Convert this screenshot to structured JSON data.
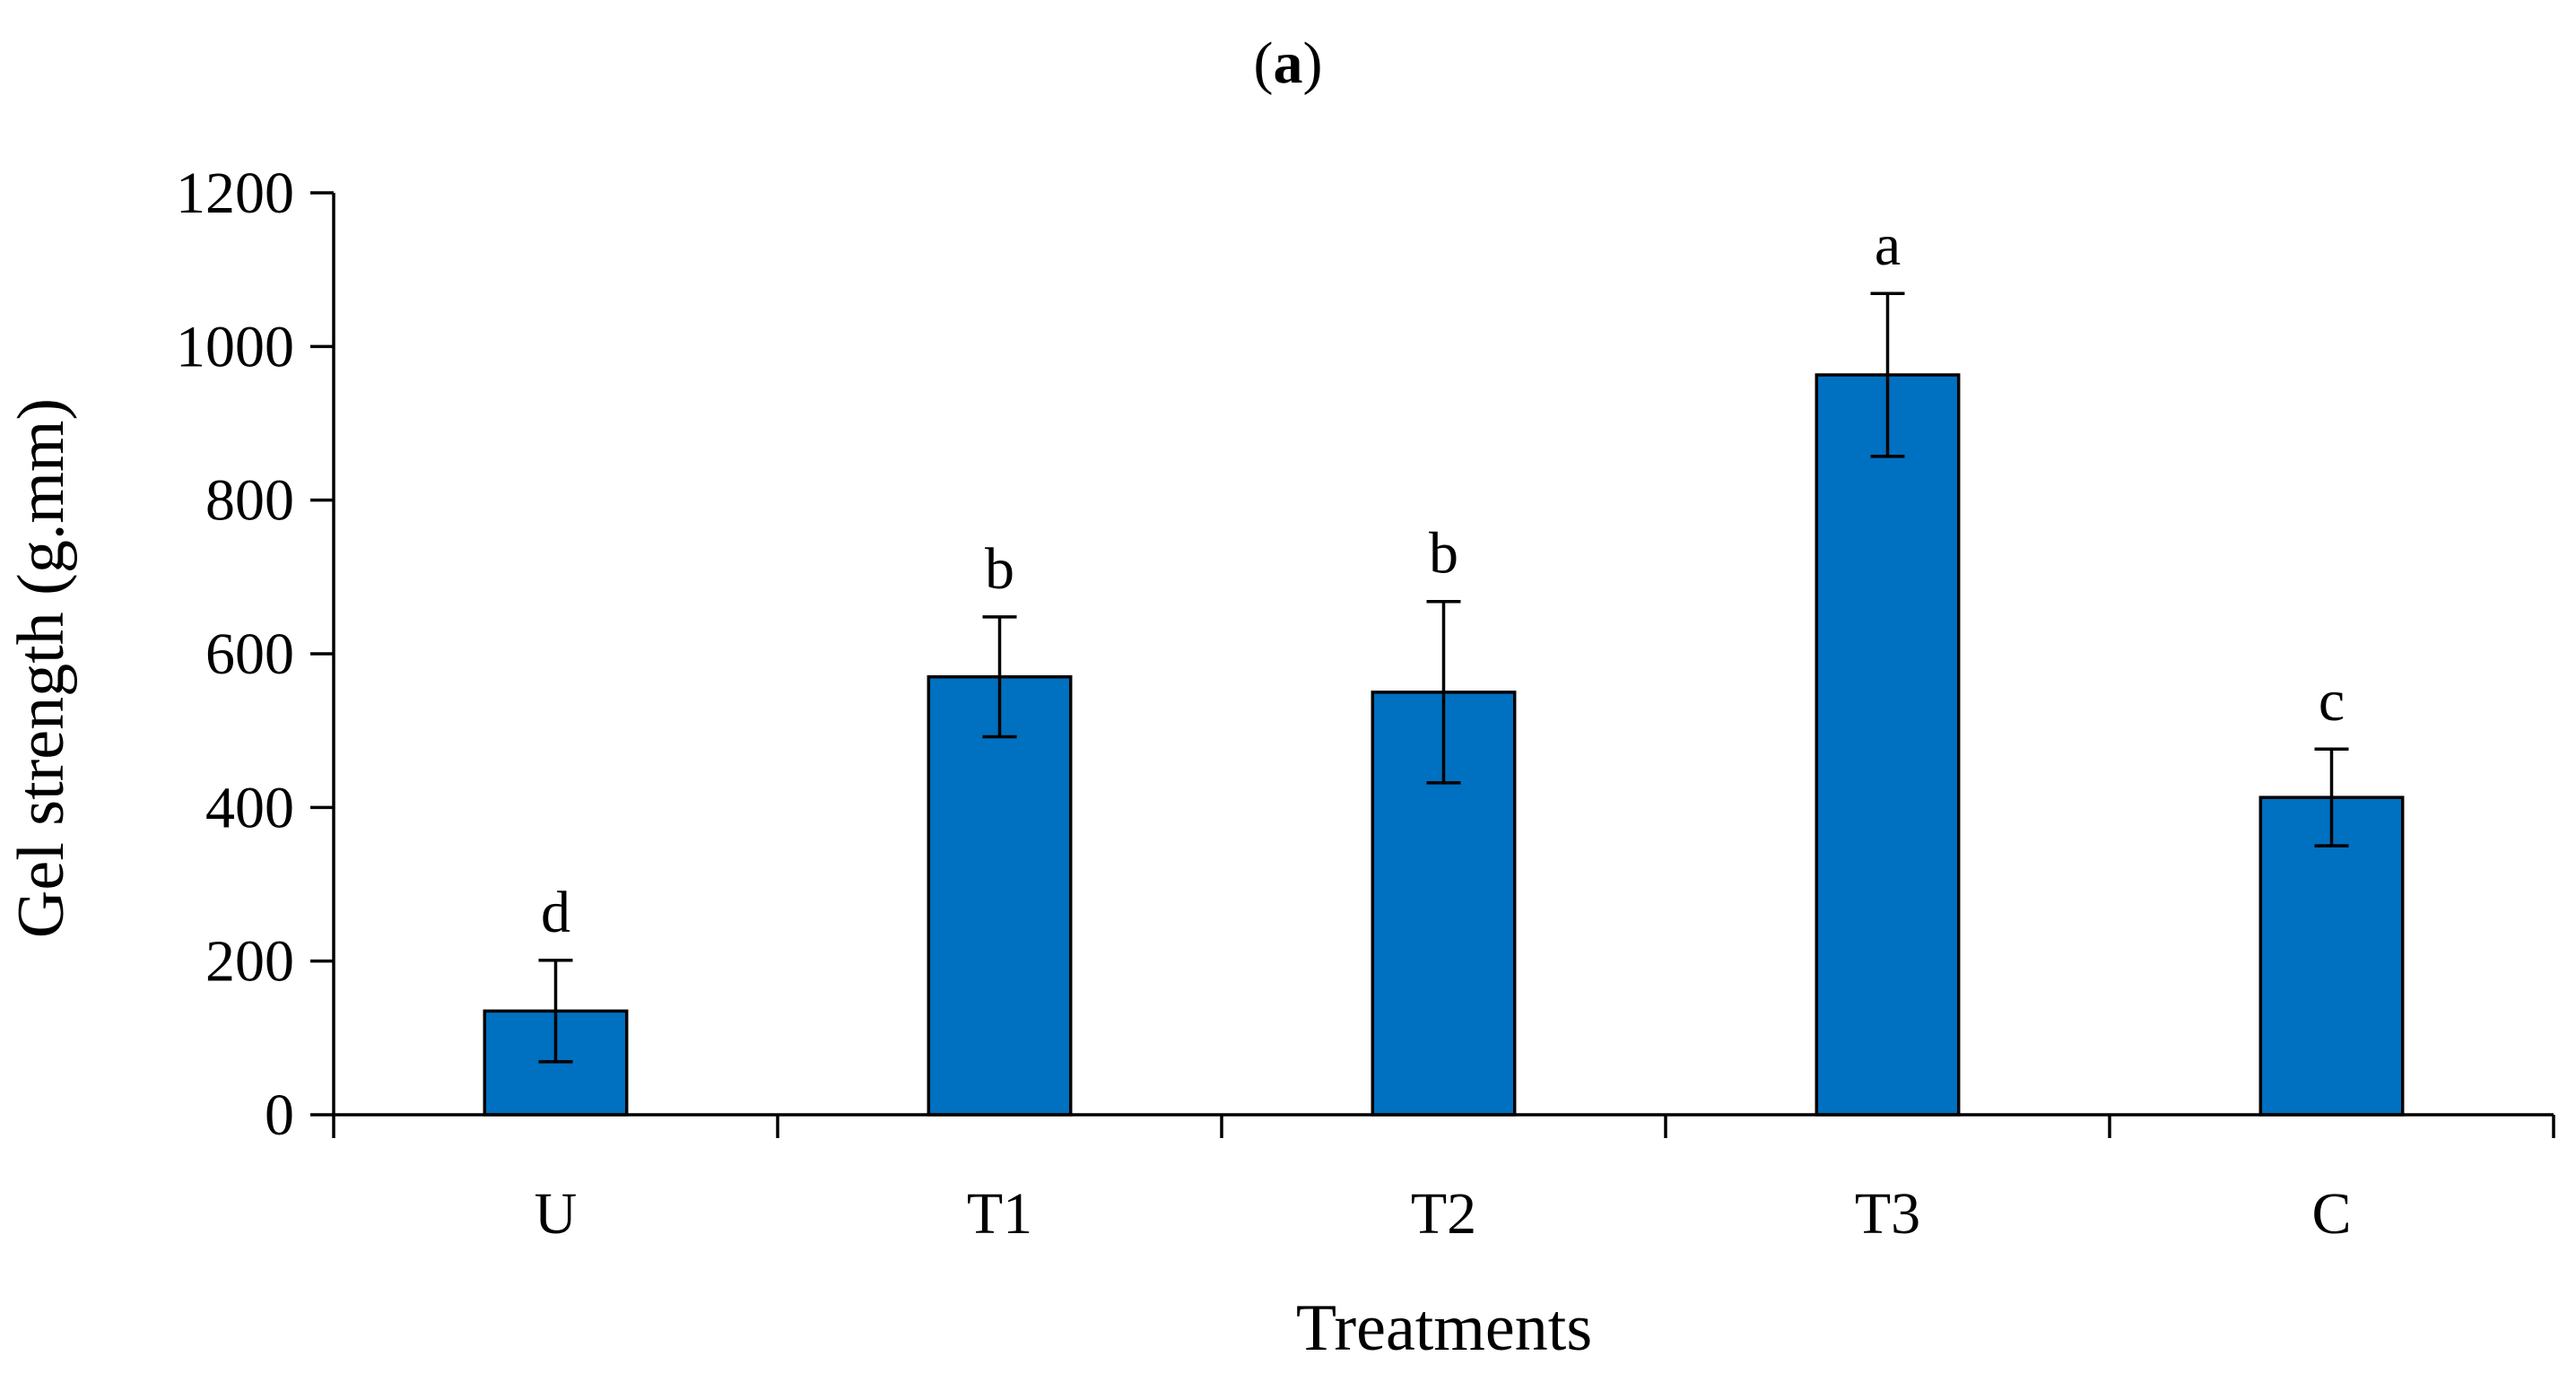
{
  "chart_data": {
    "type": "bar",
    "title_prefix": "(",
    "title_letter": "a",
    "title_suffix": ")",
    "xlabel": "Treatments",
    "ylabel": "Gel strength (g.mm)",
    "categories": [
      "U",
      "T1",
      "T2",
      "T3",
      "C"
    ],
    "values": [
      135,
      570,
      550,
      963,
      413
    ],
    "errors": [
      66,
      78,
      118,
      106,
      63
    ],
    "significance": [
      "d",
      "b",
      "b",
      "a",
      "c"
    ],
    "ylim": [
      0,
      1200
    ],
    "yticks": [
      0,
      200,
      400,
      600,
      800,
      1000,
      1200
    ],
    "grid": false,
    "bar_color": "#0070C0",
    "bar_edge_color": "#000000"
  }
}
